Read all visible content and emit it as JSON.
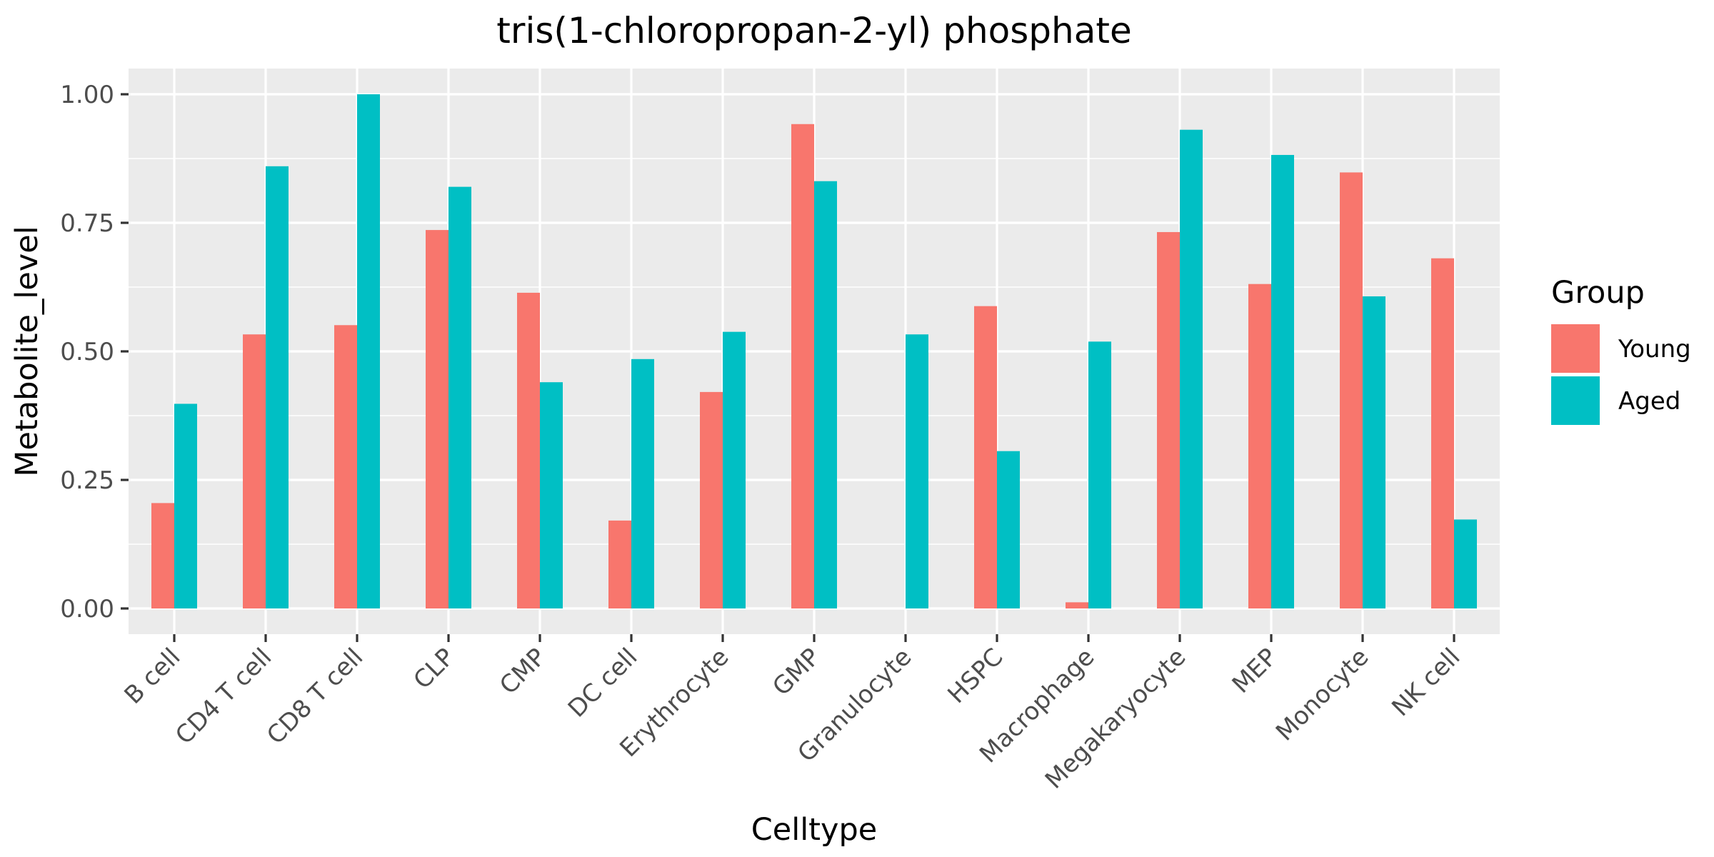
{
  "chart_data": {
    "type": "bar",
    "title": "tris(1-chloropropan-2-yl) phosphate",
    "xlabel": "Celltype",
    "ylabel": "Metabolite_level",
    "categories": [
      "B cell",
      "CD4 T cell",
      "CD8 T cell",
      "CLP",
      "CMP",
      "DC cell",
      "Erythrocyte",
      "GMP",
      "Granulocyte",
      "HSPC",
      "Macrophage",
      "Megakaryocyte",
      "MEP",
      "Monocyte",
      "NK cell"
    ],
    "series": [
      {
        "name": "Young",
        "color": "#F8766D",
        "values": [
          0.205,
          0.533,
          0.551,
          0.736,
          0.614,
          0.171,
          0.421,
          0.942,
          0.0,
          0.588,
          0.012,
          0.732,
          0.631,
          0.848,
          0.681
        ]
      },
      {
        "name": "Aged",
        "color": "#00BFC4",
        "values": [
          0.398,
          0.86,
          1.0,
          0.82,
          0.44,
          0.485,
          0.538,
          0.831,
          0.533,
          0.306,
          0.519,
          0.931,
          0.882,
          0.607,
          0.173
        ]
      }
    ],
    "ylim": [
      -0.05,
      1.05
    ],
    "yticks": [
      0,
      0.25,
      0.5,
      0.75,
      1.0
    ],
    "ytick_labels": [
      "0.00",
      "0.25",
      "0.50",
      "0.75",
      "1.00"
    ],
    "legend_title": "Group",
    "legend_position": "right",
    "grid": true,
    "panel_background": "#EBEBEB"
  }
}
